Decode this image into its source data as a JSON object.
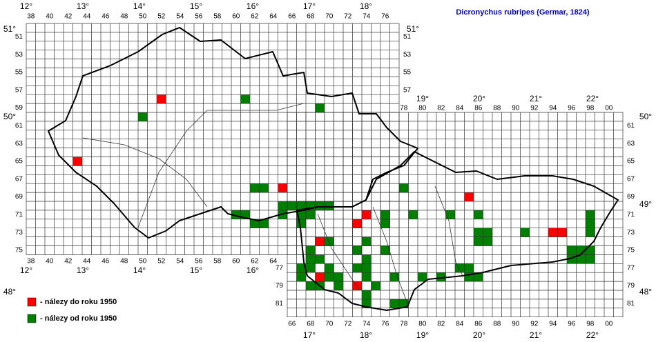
{
  "title": "Dicronychus rubripes (Germar, 1824)",
  "legend": [
    {
      "label": "- nálezy do roku 1950",
      "color": "#ff0000"
    },
    {
      "label": "- nálezy od roku 1950",
      "color": "#007f00"
    }
  ],
  "top_west_columns": [
    38,
    40,
    42,
    44,
    46,
    48,
    50,
    52,
    54,
    56,
    58,
    60,
    62,
    64,
    66,
    68,
    70,
    72,
    74,
    76
  ],
  "top_east_columns": [
    78,
    80,
    82,
    84,
    86,
    88,
    90,
    92,
    94,
    96,
    98,
    {
      "value": 100,
      "label": "00"
    }
  ],
  "bottom_west_columns": [
    38,
    40,
    42,
    44,
    46,
    48,
    50,
    52,
    54,
    56,
    58,
    60,
    62,
    64
  ],
  "bottom_east_columns": [
    66,
    68,
    70,
    72,
    74,
    76,
    78,
    80,
    82,
    84,
    86,
    88,
    90,
    92,
    94,
    96,
    98,
    {
      "value": 100,
      "label": "00"
    }
  ],
  "left_west_rows": [
    51,
    53,
    55,
    57,
    59,
    61,
    63,
    65,
    67,
    69,
    71,
    73,
    75
  ],
  "left_east_rows": [
    77,
    79,
    81
  ],
  "right_west_rows": [
    51,
    53,
    55,
    57
  ],
  "right_east_rows": [
    61,
    63,
    65,
    67,
    69,
    71,
    73,
    75,
    77,
    79,
    81
  ],
  "top_west_degrees": [
    {
      "value": 12,
      "label": "12°"
    },
    {
      "value": 13,
      "label": "13°"
    },
    {
      "value": 14,
      "label": "14°"
    },
    {
      "value": 15,
      "label": "15°"
    },
    {
      "value": 16,
      "label": "16°"
    },
    {
      "value": 17,
      "label": "17°"
    },
    {
      "value": 18,
      "label": "18°"
    }
  ],
  "top_east_degrees": [
    {
      "value": 19,
      "label": "19°"
    },
    {
      "value": 20,
      "label": "20°"
    },
    {
      "value": 21,
      "label": "21°"
    },
    {
      "value": 22,
      "label": "22°"
    }
  ],
  "bottom_west_degrees": [
    {
      "value": 12,
      "label": "12°"
    },
    {
      "value": 13,
      "label": "13°"
    },
    {
      "value": 14,
      "label": "14°"
    },
    {
      "value": 15,
      "label": "15°"
    },
    {
      "value": 16,
      "label": "16°"
    }
  ],
  "bottom_east_degrees": [
    {
      "value": 17,
      "label": "17°"
    },
    {
      "value": 18,
      "label": "18°"
    },
    {
      "value": 19,
      "label": "19°"
    },
    {
      "value": 20,
      "label": "20°"
    },
    {
      "value": 21,
      "label": "21°"
    },
    {
      "value": 22,
      "label": "22°"
    }
  ],
  "left_degrees": [
    {
      "value": 51,
      "label": "51°"
    },
    {
      "value": 50,
      "label": "50°"
    },
    {
      "value": 48,
      "label": "48°"
    }
  ],
  "right_west_degrees": [
    {
      "value": 51,
      "label": "51°"
    }
  ],
  "right_east_degrees": [
    {
      "value": 50,
      "label": "50°"
    },
    {
      "value": 49,
      "label": "49°"
    },
    {
      "value": 48,
      "label": "48°"
    }
  ],
  "records_before_1950": [
    [
      52,
      58
    ],
    [
      43,
      65
    ],
    [
      65,
      68
    ],
    [
      85,
      69
    ],
    [
      74,
      71
    ],
    [
      73,
      72
    ],
    [
      69,
      74
    ],
    [
      69,
      78
    ],
    [
      73,
      79
    ],
    [
      94,
      73
    ],
    [
      95,
      73
    ]
  ],
  "records_since_1950": [
    [
      61,
      58
    ],
    [
      69,
      59
    ],
    [
      50,
      60
    ],
    [
      62,
      68
    ],
    [
      63,
      68
    ],
    [
      78,
      68
    ],
    [
      65,
      70
    ],
    [
      66,
      70
    ],
    [
      67,
      70
    ],
    [
      68,
      70
    ],
    [
      69,
      70
    ],
    [
      70,
      70
    ],
    [
      60,
      71
    ],
    [
      61,
      71
    ],
    [
      65,
      71
    ],
    [
      67,
      71
    ],
    [
      68,
      71
    ],
    [
      76,
      71
    ],
    [
      79,
      71
    ],
    [
      83,
      71
    ],
    [
      86,
      71
    ],
    [
      98,
      71
    ],
    [
      62,
      72
    ],
    [
      63,
      72
    ],
    [
      67,
      72
    ],
    [
      76,
      72
    ],
    [
      98,
      72
    ],
    [
      86,
      73
    ],
    [
      87,
      73
    ],
    [
      91,
      73
    ],
    [
      98,
      73
    ],
    [
      70,
      74
    ],
    [
      74,
      74
    ],
    [
      86,
      74
    ],
    [
      87,
      74
    ],
    [
      68,
      75
    ],
    [
      73,
      75
    ],
    [
      76,
      75
    ],
    [
      96,
      75
    ],
    [
      97,
      75
    ],
    [
      98,
      75
    ],
    [
      68,
      76
    ],
    [
      69,
      76
    ],
    [
      74,
      76
    ],
    [
      96,
      76
    ],
    [
      97,
      76
    ],
    [
      98,
      76
    ],
    [
      67,
      77
    ],
    [
      68,
      77
    ],
    [
      70,
      77
    ],
    [
      73,
      77
    ],
    [
      74,
      77
    ],
    [
      84,
      77
    ],
    [
      85,
      77
    ],
    [
      67,
      78
    ],
    [
      70,
      78
    ],
    [
      71,
      78
    ],
    [
      74,
      78
    ],
    [
      77,
      78
    ],
    [
      80,
      78
    ],
    [
      82,
      78
    ],
    [
      85,
      78
    ],
    [
      86,
      78
    ],
    [
      68,
      79
    ],
    [
      69,
      79
    ],
    [
      71,
      79
    ],
    [
      75,
      79
    ],
    [
      74,
      80
    ],
    [
      74,
      81
    ],
    [
      77,
      81
    ],
    [
      78,
      81
    ]
  ]
}
